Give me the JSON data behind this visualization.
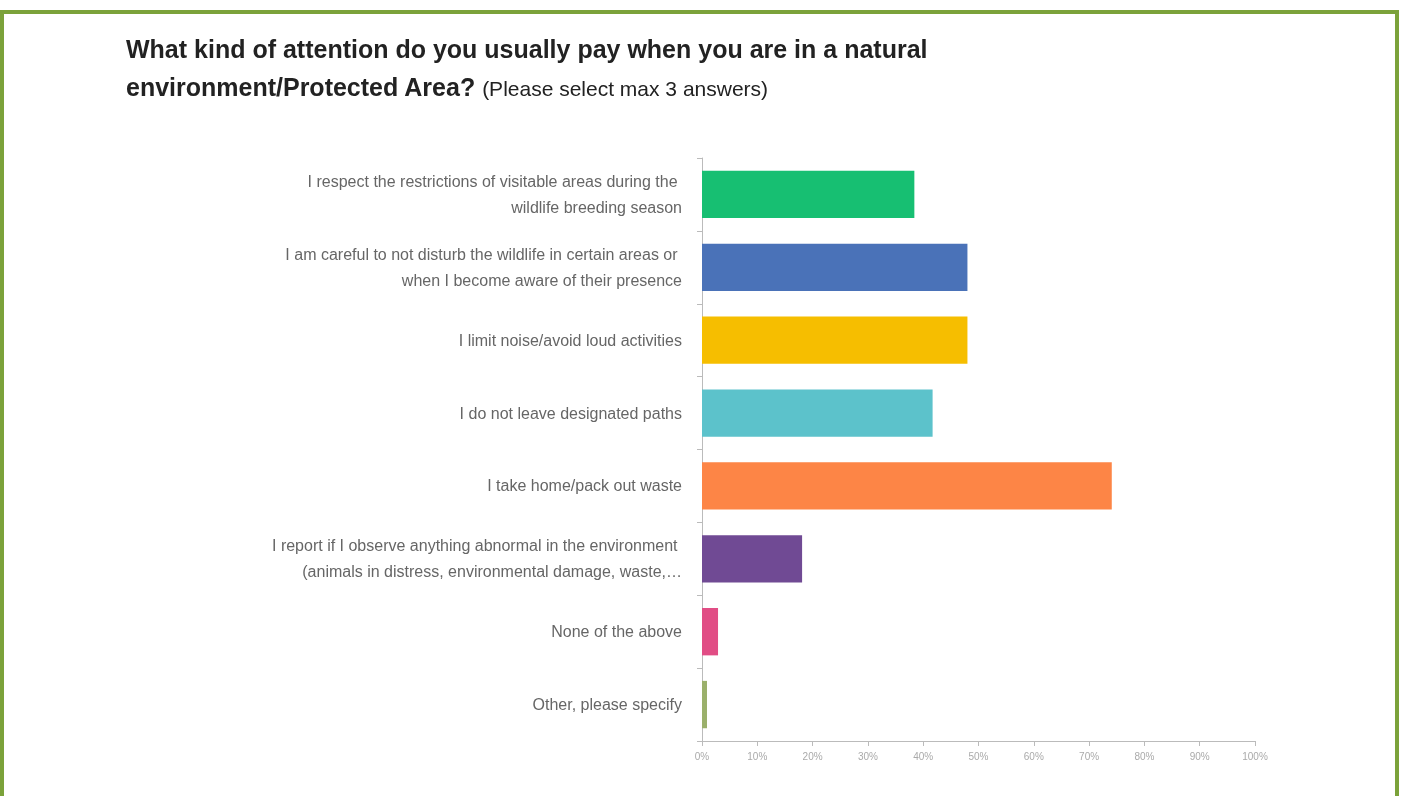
{
  "chart_data": {
    "type": "bar",
    "orientation": "horizontal",
    "title": "What kind of attention do you usually pay when you are in a natural environment/Protected Area?",
    "subtitle": "(Please select max 3 answers)",
    "categories": [
      "I respect the restrictions of visitable areas during the wildlife breeding season",
      "I am careful to not disturb the wildlife in certain areas or when I become aware of their presence",
      "I limit noise/avoid loud activities",
      "I do not leave designated paths",
      "I take home/pack out waste",
      "I report if I observe anything abnormal in the environment (animals in distress, environmental damage, waste,…",
      "None of the above",
      "Other, please specify"
    ],
    "values": [
      38.4,
      48,
      48,
      41.7,
      74.1,
      18.1,
      2.9,
      0.9
    ],
    "colors": [
      "#17bf72",
      "#4a72b8",
      "#f6be00",
      "#5cc2cb",
      "#fd8546",
      "#704a94",
      "#e14d85",
      "#9bb06b"
    ],
    "xlim": [
      0,
      100
    ],
    "xticks": [
      {
        "value": 0,
        "label": "0%"
      },
      {
        "value": 10,
        "label": "10%"
      },
      {
        "value": 20,
        "label": "20%"
      },
      {
        "value": 30,
        "label": "30%"
      },
      {
        "value": 40,
        "label": "40%"
      },
      {
        "value": 50,
        "label": "50%"
      },
      {
        "value": 60,
        "label": "60%"
      },
      {
        "value": 70,
        "label": "70%"
      },
      {
        "value": 80,
        "label": "80%"
      },
      {
        "value": 90,
        "label": "90%"
      },
      {
        "value": 100,
        "label": "100%"
      }
    ],
    "grid": false
  }
}
